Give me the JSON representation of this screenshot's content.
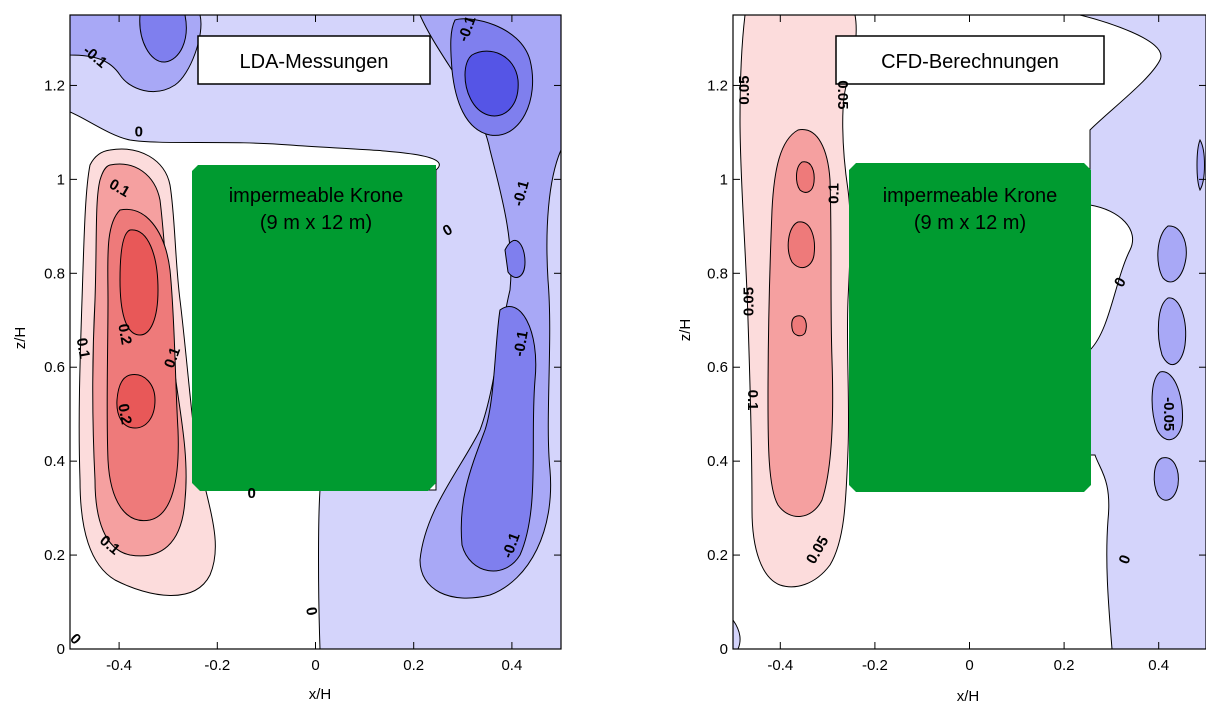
{
  "chart_data": [
    {
      "type": "contour",
      "panel_id": "left",
      "title_box": "LDA-Messungen",
      "obstacle_label_line1": "impermeable Krone",
      "obstacle_label_line2": "(9 m x 12 m)",
      "xlabel": "x/H",
      "ylabel": "z/H",
      "xlim": [
        -0.5,
        0.5
      ],
      "ylim": [
        0,
        1.35
      ],
      "x_ticks": [
        -0.4,
        -0.2,
        0,
        0.2,
        0.4
      ],
      "x_tick_labels": [
        "-0.4",
        "-0.2",
        "0",
        "0.2",
        "0.4"
      ],
      "y_ticks": [
        0,
        0.2,
        0.4,
        0.6,
        0.8,
        1,
        1.2
      ],
      "y_tick_labels": [
        "0",
        "0.2",
        "0.4",
        "0.6",
        "0.8",
        "1",
        "1.2"
      ],
      "obstacle": {
        "x": [
          -0.25,
          0.26
        ],
        "z": [
          0.33,
          1.0
        ]
      },
      "contour_levels": [
        -0.2,
        -0.1,
        0,
        0.1,
        0.2
      ],
      "contour_labels": [
        {
          "text": "-0.1",
          "x": -0.45,
          "z": 1.26,
          "angle": 40
        },
        {
          "text": "-0.1",
          "x": 0.31,
          "z": 1.32,
          "angle": -70
        },
        {
          "text": "0",
          "x": -0.36,
          "z": 1.1,
          "angle": 0
        },
        {
          "text": "0.1",
          "x": -0.4,
          "z": 0.98,
          "angle": 30
        },
        {
          "text": "-0.1",
          "x": 0.42,
          "z": 0.97,
          "angle": -75
        },
        {
          "text": "0",
          "x": 0.27,
          "z": 0.89,
          "angle": -30
        },
        {
          "text": "0.2",
          "x": -0.39,
          "z": 0.67,
          "angle": 80
        },
        {
          "text": "0.1",
          "x": -0.475,
          "z": 0.64,
          "angle": 80
        },
        {
          "text": "0.1",
          "x": -0.29,
          "z": 0.62,
          "angle": -70
        },
        {
          "text": "-0.1",
          "x": 0.42,
          "z": 0.65,
          "angle": -80
        },
        {
          "text": "0.2",
          "x": -0.39,
          "z": 0.5,
          "angle": 80
        },
        {
          "text": "0",
          "x": -0.13,
          "z": 0.33,
          "angle": 0
        },
        {
          "text": "0.1",
          "x": -0.42,
          "z": 0.22,
          "angle": 40
        },
        {
          "text": "-0.1",
          "x": 0.4,
          "z": 0.22,
          "angle": -70
        },
        {
          "text": "0",
          "x": -0.01,
          "z": 0.08,
          "angle": 80
        },
        {
          "text": "0",
          "x": -0.49,
          "z": 0.02,
          "angle": 45
        }
      ]
    },
    {
      "type": "contour",
      "panel_id": "right",
      "title_box": "CFD-Berechnungen",
      "obstacle_label_line1": "impermeable Krone",
      "obstacle_label_line2": "(9 m x 12 m)",
      "xlabel": "x/H",
      "ylabel": "z/H",
      "xlim": [
        -0.5,
        0.5
      ],
      "ylim": [
        0,
        1.35
      ],
      "x_ticks": [
        -0.4,
        -0.2,
        0,
        0.2,
        0.4
      ],
      "x_tick_labels": [
        "-0.4",
        "-0.2",
        "0",
        "0.2",
        "0.4"
      ],
      "y_ticks": [
        0,
        0.2,
        0.4,
        0.6,
        0.8,
        1,
        1.2
      ],
      "y_tick_labels": [
        "0",
        "0.2",
        "0.4",
        "0.6",
        "0.8",
        "1",
        "1.2"
      ],
      "obstacle": {
        "x": [
          -0.25,
          0.26
        ],
        "z": [
          0.33,
          1.0
        ]
      },
      "contour_levels": [
        -0.05,
        0,
        0.05,
        0.1
      ],
      "contour_labels": [
        {
          "text": "0.05",
          "x": -0.475,
          "z": 1.19,
          "angle": -90
        },
        {
          "text": "0.05",
          "x": -0.27,
          "z": 1.18,
          "angle": 90
        },
        {
          "text": "0.1",
          "x": -0.285,
          "z": 0.97,
          "angle": -90
        },
        {
          "text": "0.05",
          "x": -0.465,
          "z": 0.74,
          "angle": -90
        },
        {
          "text": "0.1",
          "x": -0.46,
          "z": 0.53,
          "angle": 90
        },
        {
          "text": "0",
          "x": 0.32,
          "z": 0.78,
          "angle": -60
        },
        {
          "text": "-0.05",
          "x": 0.42,
          "z": 0.5,
          "angle": 90
        },
        {
          "text": "0.05",
          "x": -0.32,
          "z": 0.21,
          "angle": -60
        },
        {
          "text": "0",
          "x": 0.33,
          "z": 0.19,
          "angle": -70
        }
      ]
    }
  ],
  "colors": {
    "obstacle": "#009b30",
    "pos_light": "#fcdcdc",
    "pos_med": "#f5a0a0",
    "pos_dark": "#e85858",
    "pos_darkest": "#e23d3d",
    "neg_light": "#d4d4fb",
    "neg_med": "#a8a8f6",
    "neg_dark": "#7f7fee",
    "neg_darkest": "#5555e6"
  }
}
